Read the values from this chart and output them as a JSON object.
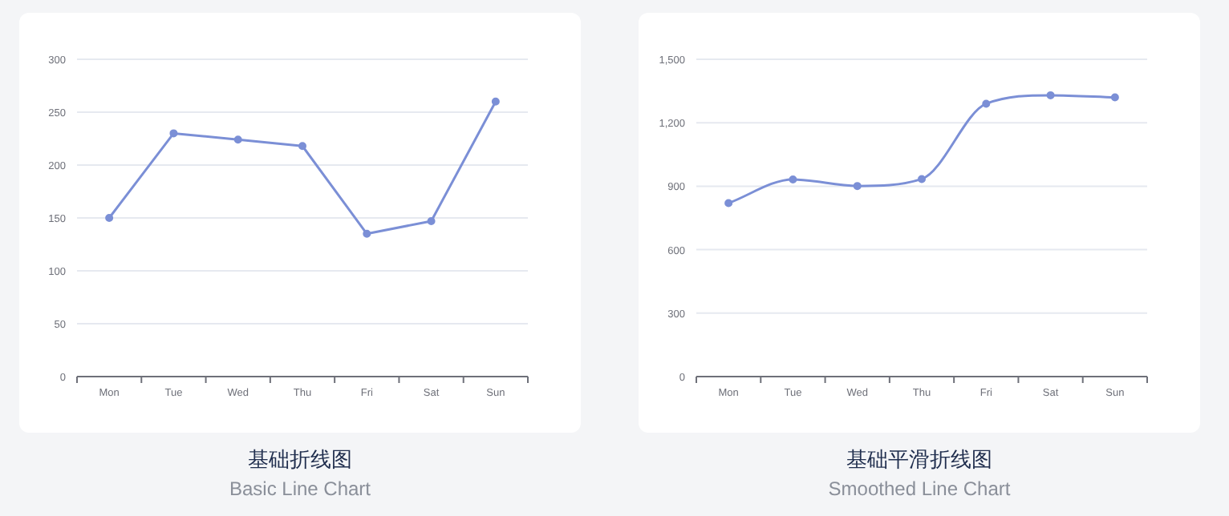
{
  "chart_data": [
    {
      "type": "line",
      "title": "基础折线图",
      "subtitle": "Basic Line Chart",
      "categories": [
        "Mon",
        "Tue",
        "Wed",
        "Thu",
        "Fri",
        "Sat",
        "Sun"
      ],
      "values": [
        150,
        230,
        224,
        218,
        135,
        147,
        260
      ],
      "color": "#7b8fd6",
      "ylim": [
        0,
        300
      ],
      "yticks": [
        0,
        50,
        100,
        150,
        200,
        250,
        300
      ],
      "grid": "y",
      "marker": "circle"
    },
    {
      "type": "line",
      "title": "基础平滑折线图",
      "subtitle": "Smoothed Line Chart",
      "categories": [
        "Mon",
        "Tue",
        "Wed",
        "Thu",
        "Fri",
        "Sat",
        "Sun"
      ],
      "values": [
        820,
        932,
        901,
        934,
        1290,
        1330,
        1320
      ],
      "color": "#7b8fd6",
      "ylim": [
        0,
        1500
      ],
      "yticks": [
        0,
        {
          "value": 300,
          "label": "300"
        },
        {
          "value": 600,
          "label": "600"
        },
        {
          "value": 900,
          "label": "900"
        },
        {
          "value": 1200,
          "label": "1,200"
        },
        {
          "value": 1500,
          "label": "1,500"
        }
      ],
      "grid": "y",
      "marker": "circle"
    }
  ]
}
